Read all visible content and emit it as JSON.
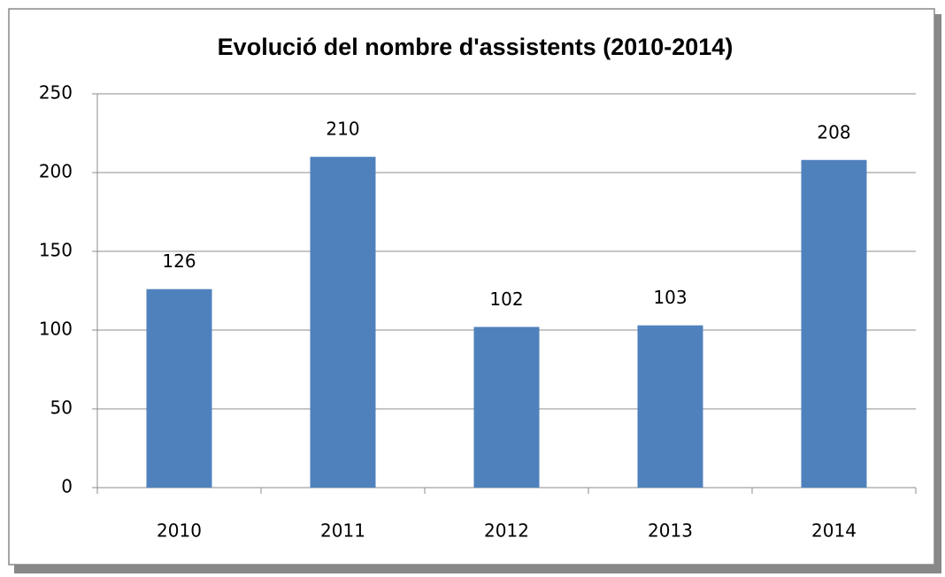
{
  "chart_data": {
    "type": "bar",
    "title": "Evolució del nombre d'assistents (2010-2014)",
    "categories": [
      "2010",
      "2011",
      "2012",
      "2013",
      "2014"
    ],
    "values": [
      126,
      210,
      102,
      103,
      208
    ],
    "color": "#4f81bd",
    "ylim": [
      0,
      250
    ],
    "yticks": [
      0,
      50,
      100,
      150,
      200,
      250
    ],
    "grid": true
  }
}
